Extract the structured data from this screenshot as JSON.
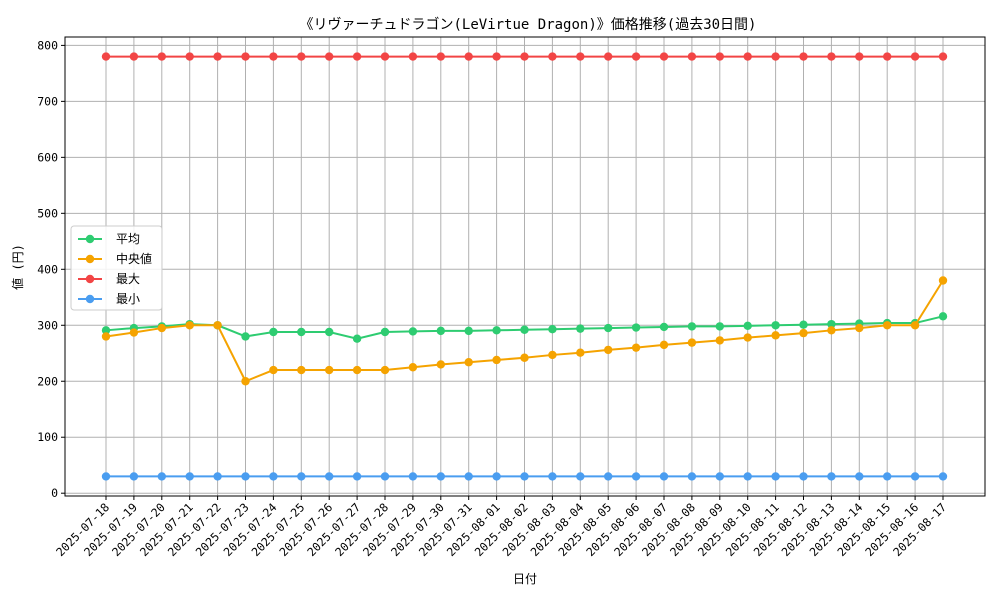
{
  "chart_data": {
    "type": "line",
    "title": "《リヴァーチュドラゴン(LeVirtue Dragon)》価格推移(過去30日間)",
    "xlabel": "日付",
    "ylabel": "値 (円)",
    "ylim": [
      -5,
      815
    ],
    "yticks": [
      0,
      100,
      200,
      300,
      400,
      500,
      600,
      700,
      800
    ],
    "grid": true,
    "legend_position": "center-left",
    "x": [
      "2025-07-18",
      "2025-07-19",
      "2025-07-20",
      "2025-07-21",
      "2025-07-22",
      "2025-07-23",
      "2025-07-24",
      "2025-07-25",
      "2025-07-26",
      "2025-07-27",
      "2025-07-28",
      "2025-07-29",
      "2025-07-30",
      "2025-07-31",
      "2025-08-01",
      "2025-08-02",
      "2025-08-03",
      "2025-08-04",
      "2025-08-05",
      "2025-08-06",
      "2025-08-07",
      "2025-08-08",
      "2025-08-09",
      "2025-08-10",
      "2025-08-11",
      "2025-08-12",
      "2025-08-13",
      "2025-08-14",
      "2025-08-15",
      "2025-08-16",
      "2025-08-17"
    ],
    "series": [
      {
        "name": "平均",
        "color": "#2ecc71",
        "values": [
          291,
          295,
          298,
          302,
          300,
          280,
          288,
          288,
          288,
          276,
          288,
          289,
          290,
          290,
          291,
          292,
          293,
          294,
          295,
          296,
          297,
          298,
          298,
          299,
          300,
          301,
          302,
          303,
          304,
          304,
          316
        ]
      },
      {
        "name": "中央値",
        "color": "#f5a300",
        "values": [
          280,
          287,
          295,
          300,
          300,
          200,
          220,
          220,
          220,
          220,
          220,
          225,
          230,
          234,
          238,
          242,
          247,
          251,
          256,
          260,
          265,
          269,
          273,
          278,
          282,
          286,
          291,
          295,
          300,
          300,
          380
        ]
      },
      {
        "name": "最大",
        "color": "#f24545",
        "values": [
          780,
          780,
          780,
          780,
          780,
          780,
          780,
          780,
          780,
          780,
          780,
          780,
          780,
          780,
          780,
          780,
          780,
          780,
          780,
          780,
          780,
          780,
          780,
          780,
          780,
          780,
          780,
          780,
          780,
          780,
          780
        ]
      },
      {
        "name": "最小",
        "color": "#4a9df0",
        "values": [
          30,
          30,
          30,
          30,
          30,
          30,
          30,
          30,
          30,
          30,
          30,
          30,
          30,
          30,
          30,
          30,
          30,
          30,
          30,
          30,
          30,
          30,
          30,
          30,
          30,
          30,
          30,
          30,
          30,
          30,
          30
        ]
      }
    ]
  }
}
